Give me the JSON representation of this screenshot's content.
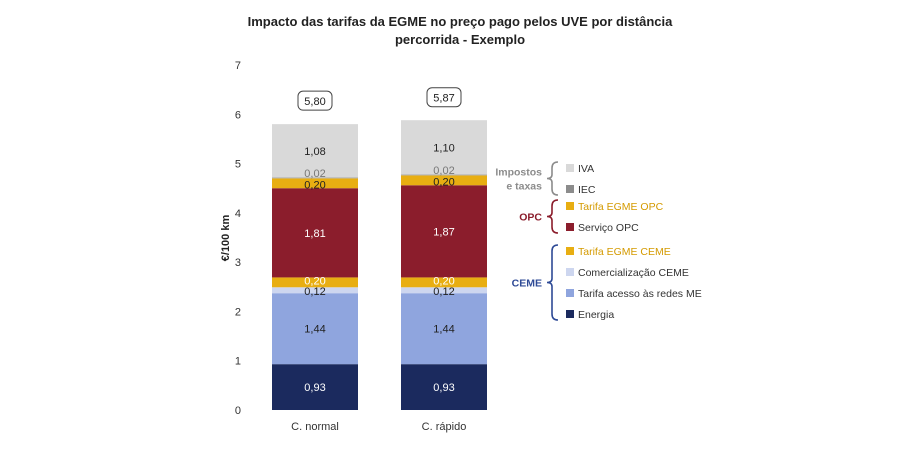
{
  "chart_data": {
    "type": "bar",
    "stacked": true,
    "title_lines": [
      "Impacto das tarifas da EGME no preço pago pelos UVE por distância",
      "percorrida - Exemplo"
    ],
    "xlabel": "",
    "ylabel": "€/100 km",
    "ylim": [
      0,
      7
    ],
    "yticks": [
      "0",
      "1",
      "2",
      "3",
      "4",
      "5",
      "6",
      "7"
    ],
    "grid": false,
    "legend_position": "right",
    "categories": [
      "C. normal",
      "C. rápido"
    ],
    "totals": [
      5.8,
      5.87
    ],
    "total_labels": [
      "5,80",
      "5,87"
    ],
    "series": [
      {
        "name": "Energia",
        "values": [
          0.93,
          0.93
        ],
        "labels": [
          "0,93",
          "0,93"
        ],
        "color": "#1b2a5e",
        "label_color": "#ffffff"
      },
      {
        "name": "Tarifa acesso às redes ME",
        "values": [
          1.44,
          1.44
        ],
        "labels": [
          "1,44",
          "1,44"
        ],
        "color": "#8fa5de",
        "label_color": "#222222"
      },
      {
        "name": "Comercialização CEME",
        "values": [
          0.12,
          0.12
        ],
        "labels": [
          "0,12",
          "0,12"
        ],
        "color": "#cdd6ef",
        "label_color": "#222222"
      },
      {
        "name": "Tarifa EGME CEME",
        "values": [
          0.2,
          0.2
        ],
        "labels": [
          "0,20",
          "0,20"
        ],
        "color": "#e8ae12",
        "label_color": "#ffffff"
      },
      {
        "name": "Serviço OPC",
        "values": [
          1.81,
          1.87
        ],
        "labels": [
          "1,81",
          "1,87"
        ],
        "color": "#8b1d2c",
        "label_color": "#ffffff"
      },
      {
        "name": "Tarifa EGME OPC",
        "values": [
          0.2,
          0.2
        ],
        "labels": [
          "0,20",
          "0,20"
        ],
        "color": "#e8ae12",
        "label_color": "#222222"
      },
      {
        "name": "IEC",
        "values": [
          0.02,
          0.02
        ],
        "labels": [
          "0,02",
          "0,02"
        ],
        "color": "#a6a6a6",
        "label_color": "#777777"
      },
      {
        "name": "IVA",
        "values": [
          1.08,
          1.1
        ],
        "labels": [
          "1,08",
          "1,10"
        ],
        "color": "#d9d9d9",
        "label_color": "#222222"
      }
    ],
    "legend_groups": [
      {
        "label_lines": [
          "Impostos",
          "e taxas"
        ],
        "color": "#8c8c8c",
        "items": [
          {
            "name": "IVA",
            "color": "#d9d9d9",
            "text_color": "#333333"
          },
          {
            "name": "IEC",
            "color": "#8c8c8c",
            "text_color": "#333333"
          }
        ]
      },
      {
        "label_lines": [
          "OPC"
        ],
        "color": "#8b1d2c",
        "items": [
          {
            "name": "Tarifa EGME OPC",
            "color": "#e8ae12",
            "text_color": "#d49a00"
          },
          {
            "name": "Serviço OPC",
            "color": "#8b1d2c",
            "text_color": "#333333"
          }
        ]
      },
      {
        "label_lines": [
          "CEME"
        ],
        "color": "#2e4a96",
        "items": [
          {
            "name": "Tarifa EGME CEME",
            "color": "#e8ae12",
            "text_color": "#d49a00"
          },
          {
            "name": "Comercialização CEME",
            "color": "#cdd6ef",
            "text_color": "#333333"
          },
          {
            "name": "Tarifa acesso às redes ME",
            "color": "#8fa5de",
            "text_color": "#333333"
          },
          {
            "name": "Energia",
            "color": "#1b2a5e",
            "text_color": "#333333"
          }
        ]
      }
    ]
  }
}
